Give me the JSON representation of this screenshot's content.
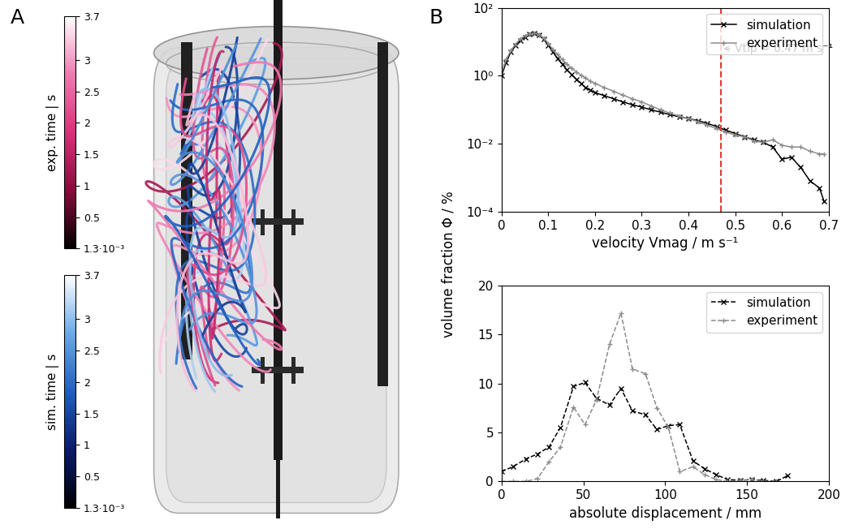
{
  "panel_labels": [
    "A",
    "B"
  ],
  "illustration": {
    "colorbars": [
      {
        "label": "exp. time | s",
        "range": [
          0.0013,
          3.7
        ],
        "ticks": [
          {
            "value": 0.0013,
            "label": "1.3·10⁻³"
          },
          0.5,
          1,
          1.5,
          2,
          2.5,
          3,
          3.7
        ]
      },
      {
        "label": "sim. time | s",
        "range": [
          0.0013,
          3.7
        ],
        "ticks": [
          {
            "value": 0.0013,
            "label": "1.3·10⁻³"
          },
          0.5,
          1,
          1.5,
          2,
          2.5,
          3,
          3.7
        ]
      }
    ]
  },
  "shared_ylabel": "volume fraction Φ / %",
  "chart_data": [
    {
      "type": "line",
      "xlabel": "velocity Vmag / m s⁻¹",
      "log": "y",
      "legend": "upper right",
      "xlim": [
        0,
        0.7
      ],
      "xticks": [
        0,
        0.1,
        0.2,
        0.3,
        0.4,
        0.5,
        0.6,
        0.7
      ],
      "ylim": [
        0.0001,
        100
      ],
      "yticks": [
        {
          "value": 0.0001,
          "label": "10⁻⁴"
        },
        {
          "value": 0.01,
          "label": "10⁻²"
        },
        {
          "value": 1,
          "label": "10⁰"
        },
        {
          "value": 100,
          "label": "10²"
        }
      ],
      "annotations": [
        {
          "x": 0.47,
          "text": "Vtip = 0.47 m s⁻¹",
          "color": "#e03a3a",
          "line_style": "dashed"
        }
      ],
      "series": [
        {
          "name": "simulation",
          "color": "#000000",
          "marker": "x",
          "line_style": "solid",
          "x": [
            0,
            0.01,
            0.02,
            0.03,
            0.04,
            0.05,
            0.06,
            0.07,
            0.08,
            0.09,
            0.1,
            0.11,
            0.12,
            0.13,
            0.14,
            0.15,
            0.16,
            0.17,
            0.18,
            0.19,
            0.2,
            0.22,
            0.24,
            0.26,
            0.28,
            0.3,
            0.32,
            0.34,
            0.36,
            0.38,
            0.4,
            0.42,
            0.44,
            0.46,
            0.48,
            0.5,
            0.52,
            0.54,
            0.56,
            0.58,
            0.6,
            0.62,
            0.64,
            0.66,
            0.68,
            0.69
          ],
          "values": [
            1.0,
            2.5,
            5,
            8,
            11,
            14,
            17,
            18,
            16,
            12,
            8,
            5,
            3.2,
            2.2,
            1.5,
            1.1,
            0.8,
            0.6,
            0.45,
            0.38,
            0.32,
            0.26,
            0.21,
            0.17,
            0.14,
            0.12,
            0.1,
            0.085,
            0.072,
            0.062,
            0.055,
            0.048,
            0.04,
            0.032,
            0.025,
            0.02,
            0.016,
            0.013,
            0.011,
            0.008,
            0.0035,
            0.004,
            0.002,
            0.0008,
            0.0005,
            0.0002
          ]
        },
        {
          "name": "experiment",
          "color": "#8c8c8c",
          "marker": "+",
          "line_style": "solid",
          "x": [
            0,
            0.01,
            0.02,
            0.03,
            0.04,
            0.05,
            0.06,
            0.07,
            0.08,
            0.09,
            0.1,
            0.11,
            0.12,
            0.13,
            0.14,
            0.15,
            0.16,
            0.17,
            0.18,
            0.19,
            0.2,
            0.22,
            0.24,
            0.26,
            0.28,
            0.3,
            0.32,
            0.34,
            0.36,
            0.38,
            0.4,
            0.42,
            0.44,
            0.46,
            0.48,
            0.5,
            0.52,
            0.54,
            0.56,
            0.58,
            0.6,
            0.62,
            0.64,
            0.66,
            0.68,
            0.69
          ],
          "values": [
            1.2,
            3,
            5.5,
            8.5,
            12,
            15,
            17,
            18,
            16.5,
            13,
            9,
            6,
            4.2,
            3,
            2.2,
            1.7,
            1.3,
            1.05,
            0.85,
            0.7,
            0.6,
            0.45,
            0.35,
            0.27,
            0.21,
            0.17,
            0.13,
            0.1,
            0.08,
            0.065,
            0.055,
            0.045,
            0.035,
            0.028,
            0.022,
            0.018,
            0.016,
            0.012,
            0.011,
            0.013,
            0.009,
            0.008,
            0.008,
            0.006,
            0.005,
            0.005
          ]
        }
      ]
    },
    {
      "type": "line",
      "xlabel": "absolute displacement / mm",
      "legend": "upper right",
      "xlim": [
        0,
        200
      ],
      "xticks": [
        0,
        50,
        100,
        150,
        200
      ],
      "ylim": [
        0,
        20
      ],
      "yticks": [
        0,
        5,
        10,
        15,
        20
      ],
      "series": [
        {
          "name": "simulation",
          "color": "#000000",
          "marker": "x",
          "line_style": "dashed",
          "x": [
            0,
            7,
            15,
            22,
            29,
            36,
            44,
            51,
            58,
            66,
            73,
            80,
            88,
            95,
            102,
            109,
            117,
            124,
            131,
            138,
            146,
            153,
            160,
            168,
            175
          ],
          "values": [
            1,
            1.5,
            2.3,
            2.8,
            3.5,
            5.5,
            9.7,
            10.1,
            8.5,
            7.8,
            9.5,
            7.2,
            6.8,
            5.3,
            5.7,
            5.8,
            2.1,
            1.3,
            0.7,
            0.2,
            0.1,
            0.2,
            0.1,
            0,
            0.6
          ]
        },
        {
          "name": "experiment",
          "color": "#8c8c8c",
          "marker": "+",
          "line_style": "dashed",
          "x": [
            0,
            7,
            15,
            22,
            29,
            36,
            44,
            51,
            58,
            66,
            73,
            80,
            88,
            95,
            102,
            109,
            117,
            124,
            131,
            138,
            146,
            153,
            160,
            168
          ],
          "values": [
            0,
            0,
            0,
            0.3,
            2,
            3.5,
            7.6,
            5.8,
            8.3,
            14,
            17.2,
            11.5,
            11,
            7.5,
            5.5,
            1,
            1.5,
            0.7,
            0.2,
            0,
            0.1,
            0.2,
            0,
            0
          ]
        }
      ]
    }
  ]
}
